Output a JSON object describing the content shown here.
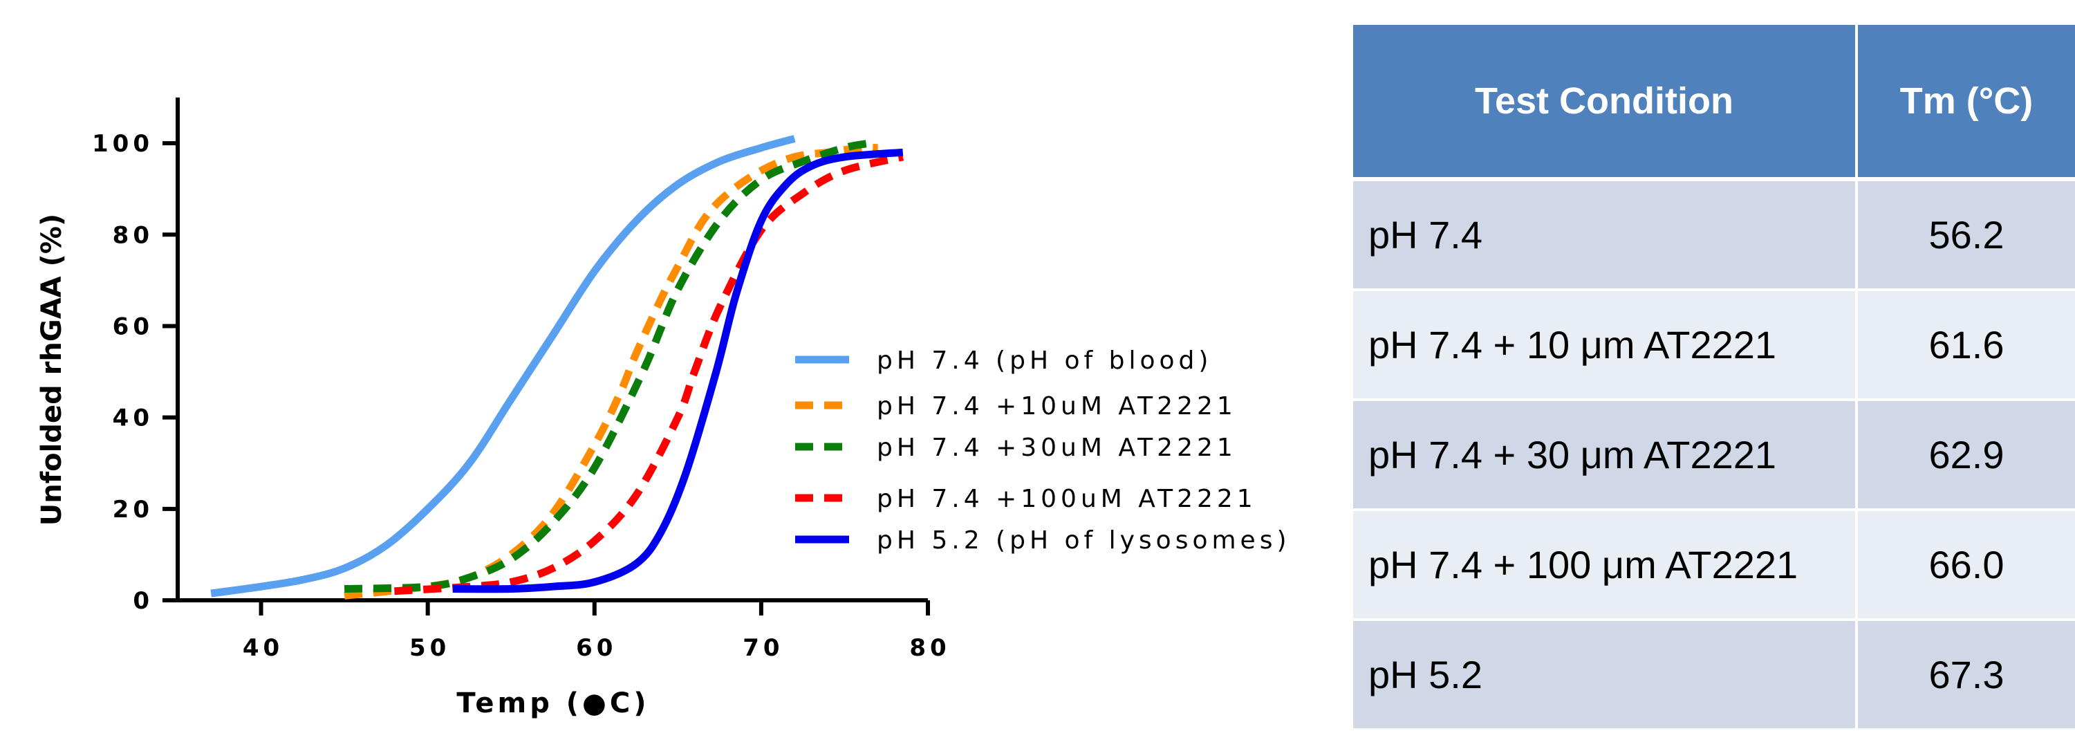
{
  "chart_data": {
    "type": "line",
    "xlabel": "Temp (●C)",
    "ylabel": "Unfolded rhGAA (%)",
    "xlim": [
      35,
      80
    ],
    "ylim": [
      0,
      110
    ],
    "x_ticks": [
      "40",
      "50",
      "60",
      "70",
      "80"
    ],
    "y_ticks": [
      "0",
      "20",
      "40",
      "60",
      "80",
      "100"
    ],
    "x_tick_values": [
      40,
      50,
      60,
      70,
      80
    ],
    "y_tick_values": [
      0,
      20,
      40,
      60,
      80,
      100
    ],
    "grid": false,
    "legend_position": "center-right",
    "series": [
      {
        "name": "pH 7.4 (pH of blood)",
        "color": "#5aa0f0",
        "dash": "solid",
        "x": [
          37,
          40,
          42.5,
          45,
          47.5,
          50,
          52.5,
          55,
          57.5,
          60,
          62.5,
          65,
          67.5,
          70,
          72
        ],
        "y": [
          1.5,
          3,
          4.5,
          7,
          12,
          20,
          30,
          44,
          58,
          72,
          83,
          91,
          96,
          99,
          101
        ]
      },
      {
        "name": "pH 7.4 +10uM AT2221",
        "color": "#ff8c00",
        "dash": "dashed",
        "x": [
          45,
          50,
          52.5,
          55,
          57.5,
          60,
          61.5,
          62.5,
          64,
          65,
          66.5,
          68,
          70,
          72,
          74,
          76,
          77
        ],
        "y": [
          1,
          3,
          5,
          10,
          19,
          34,
          45,
          54,
          66,
          73,
          83,
          89,
          94,
          97,
          98,
          99,
          99
        ]
      },
      {
        "name": "pH 7.4 +30uM AT2221",
        "color": "#0a7d0a",
        "dash": "dashed",
        "x": [
          45,
          50,
          52.5,
          55,
          57.5,
          60,
          62.9,
          65,
          67.5,
          70,
          72.5,
          75,
          76.5
        ],
        "y": [
          2.5,
          3,
          5,
          9,
          17,
          29,
          50,
          68,
          83,
          92,
          96,
          99,
          100
        ]
      },
      {
        "name": "pH 7.4 +100uM AT2221",
        "color": "#ff0000",
        "dash": "dashed",
        "x": [
          48,
          52.5,
          55,
          57.5,
          60,
          62.5,
          65,
          66,
          67.5,
          70,
          72.5,
          75,
          78.5
        ],
        "y": [
          2,
          3,
          4,
          7,
          13,
          23,
          40,
          50,
          64,
          81,
          89,
          94,
          97
        ]
      },
      {
        "name": "pH 5.2 (pH of lysosomes)",
        "color": "#0000ee",
        "dash": "solid",
        "x": [
          51.5,
          55,
          57.5,
          60,
          62.5,
          64,
          65.5,
          67.3,
          68.5,
          70,
          71.5,
          73,
          75,
          78.5
        ],
        "y": [
          2.5,
          2.5,
          3,
          4,
          8,
          15,
          28,
          50,
          67,
          83,
          91,
          95,
          97,
          98
        ]
      }
    ]
  },
  "table": {
    "headers": [
      "Test Condition",
      "Tm (°C)"
    ],
    "rows": [
      {
        "condition": "pH 7.4",
        "tm": "56.2"
      },
      {
        "condition": "pH 7.4 + 10 μm AT2221",
        "tm": "61.6"
      },
      {
        "condition": "pH 7.4 + 30 μm AT2221",
        "tm": "62.9"
      },
      {
        "condition": "pH 7.4 + 100 μm AT2221",
        "tm": "66.0"
      },
      {
        "condition": "pH 5.2",
        "tm": "67.3"
      }
    ]
  }
}
